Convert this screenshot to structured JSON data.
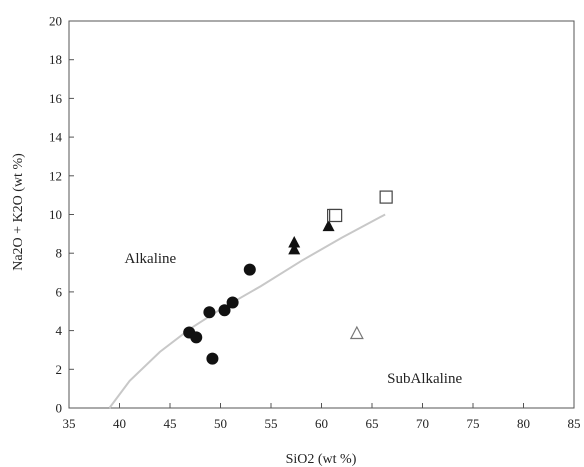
{
  "chart_data": {
    "type": "scatter",
    "title": "",
    "xlabel": "SiO2  (wt %)",
    "ylabel": "Na2O + K2O  (wt %)",
    "xlim": [
      35,
      85
    ],
    "ylim": [
      0,
      20
    ],
    "x_ticks": [
      "35",
      "40",
      "45",
      "50",
      "55",
      "60",
      "65",
      "70",
      "75",
      "80",
      "85"
    ],
    "y_ticks": [
      "0",
      "2",
      "4",
      "6",
      "8",
      "10",
      "12",
      "14",
      "16",
      "18",
      "20"
    ],
    "grid": false,
    "annotations": [
      {
        "text": "Alkaline",
        "x": 40.5,
        "y": 7.5
      },
      {
        "text": "SubAlkaline",
        "x": 66.5,
        "y": 1.3
      }
    ],
    "boundary_line": {
      "color": "#c8c8c8",
      "x": [
        39.0,
        41.0,
        44.0,
        47.0,
        50.0,
        54.0,
        58.0,
        62.0,
        66.3
      ],
      "y": [
        0.0,
        1.4,
        2.9,
        4.1,
        5.1,
        6.3,
        7.6,
        8.8,
        10.0
      ]
    },
    "series": [
      {
        "marker": "filled-circle",
        "x": [
          46.9,
          47.6,
          48.9,
          49.2,
          50.4,
          51.2,
          52.9
        ],
        "y": [
          3.9,
          3.65,
          4.95,
          2.55,
          5.05,
          5.45,
          7.15
        ]
      },
      {
        "marker": "filled-triangle",
        "x": [
          57.3,
          57.3,
          60.7
        ],
        "y": [
          8.55,
          8.2,
          9.4
        ]
      },
      {
        "marker": "open-triangle",
        "x": [
          63.5
        ],
        "y": [
          3.85
        ]
      },
      {
        "marker": "open-square",
        "x": [
          61.2,
          61.4,
          66.4
        ],
        "y": [
          9.95,
          9.95,
          10.9
        ]
      }
    ]
  }
}
